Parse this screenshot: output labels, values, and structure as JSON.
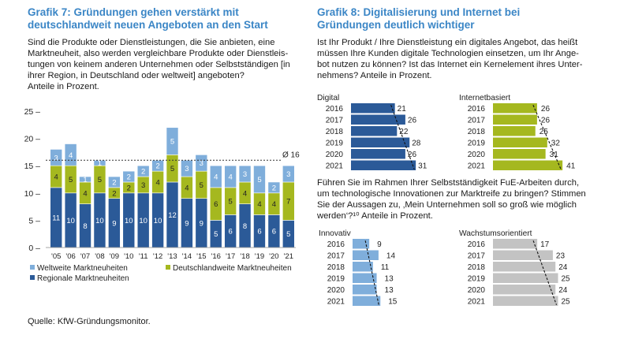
{
  "colors": {
    "regional": "#2b5a98",
    "national": "#a5b81f",
    "worldwide": "#7faedb",
    "gray": "#c3c3c3",
    "title": "#3b86c6"
  },
  "left": {
    "title1": "Grafik 7: Gründungen gehen verstärkt mit",
    "title2": "deutschlandweit neuen Angeboten an den Start",
    "question": [
      "Sind die Produkte oder Dienstleistungen, die Sie anbieten, eine",
      "Marktneuheit, also werden vergleichbare Produkte oder Dienstleis-",
      "tungen von keinem anderen Unternehmen oder Selbstständigen [in",
      "ihrer Region, in Deutschland oder weltweit] angeboten?",
      "Anteile in Prozent."
    ],
    "source": "Quelle: KfW-Gründungsmonitor."
  },
  "right": {
    "title1": "Grafik 8: Digitalisierung und Internet bei",
    "title2": "Gründungen deutlich wichtiger",
    "q1": [
      "Ist Ihr Produkt / Ihre Dienstleistung ein digitales Angebot, das heißt",
      "müssen Ihre Kunden digitale Technologien einsetzen, um Ihr Ange-",
      "bot nutzen zu können? Ist das Internet ein Kernelement ihres Unter-",
      "nehmens? Anteile in Prozent."
    ],
    "q2": [
      "Führen Sie im Rahmen Ihrer Selbstständigkeit FuE-Arbeiten durch,",
      "um technologische Innovationen zur Marktreife zu bringen? Stimmen",
      "Sie der Aussagen zu, ‚Mein Unternehmen soll so groß wie möglich",
      "werden‘?¹⁰ Anteile in Prozent."
    ]
  },
  "chart_data": [
    {
      "type": "bar",
      "stacked": true,
      "categories": [
        "'05",
        "'06",
        "'07",
        "'08",
        "'09",
        "'10",
        "'11",
        "'12",
        "'13",
        "'14",
        "'15",
        "'16",
        "'17",
        "'18",
        "'19",
        "'20",
        "'21"
      ],
      "series": [
        {
          "name": "Regionale Marktneuheiten",
          "values": [
            11,
            10,
            8,
            10,
            9,
            10,
            10,
            10,
            12,
            9,
            9,
            5,
            6,
            8,
            6,
            6,
            5
          ]
        },
        {
          "name": "Deutschlandweite Marktneuheiten",
          "values": [
            4,
            5,
            4,
            5,
            2,
            2,
            3,
            4,
            5,
            4,
            5,
            6,
            5,
            4,
            4,
            4,
            7
          ]
        },
        {
          "name": "Weltweite Marktneuheiten",
          "values": [
            3,
            4,
            1,
            1,
            2,
            2,
            2,
            2,
            5,
            3,
            3,
            4,
            4,
            3,
            5,
            2,
            3
          ]
        }
      ],
      "ylim": [
        0,
        25
      ],
      "yticks": [
        "0",
        "5",
        "10",
        "15",
        "20",
        "25"
      ],
      "yticks_labels": [
        "0 –",
        "5 –",
        "10 –",
        "15 –",
        "20 –",
        "25 –"
      ],
      "reference_line": {
        "value": 16,
        "label": "Ø 16"
      },
      "legend": "bottom"
    },
    {
      "type": "bar",
      "orientation": "horizontal",
      "title": "Digital",
      "categories": [
        "2016",
        "2017",
        "2018",
        "2019",
        "2020",
        "2021"
      ],
      "values": [
        21,
        26,
        22,
        28,
        26,
        31
      ],
      "xlim": [
        0,
        31
      ]
    },
    {
      "type": "bar",
      "orientation": "horizontal",
      "title": "Internetbasiert",
      "categories": [
        "2016",
        "2017",
        "2018",
        "2019",
        "2020",
        "2021"
      ],
      "values": [
        26,
        26,
        25,
        32,
        31,
        41
      ],
      "xlim": [
        0,
        41
      ]
    },
    {
      "type": "bar",
      "orientation": "horizontal",
      "title": "Innovativ",
      "categories": [
        "2016",
        "2017",
        "2018",
        "2019",
        "2020",
        "2021"
      ],
      "values": [
        9,
        14,
        11,
        13,
        13,
        15
      ],
      "xlim": [
        0,
        41
      ]
    },
    {
      "type": "bar",
      "orientation": "horizontal",
      "title": "Wachstumsorientiert",
      "categories": [
        "2016",
        "2017",
        "2018",
        "2019",
        "2020",
        "2021"
      ],
      "values": [
        17,
        23,
        24,
        25,
        24,
        25
      ],
      "xlim": [
        0,
        25
      ]
    }
  ]
}
